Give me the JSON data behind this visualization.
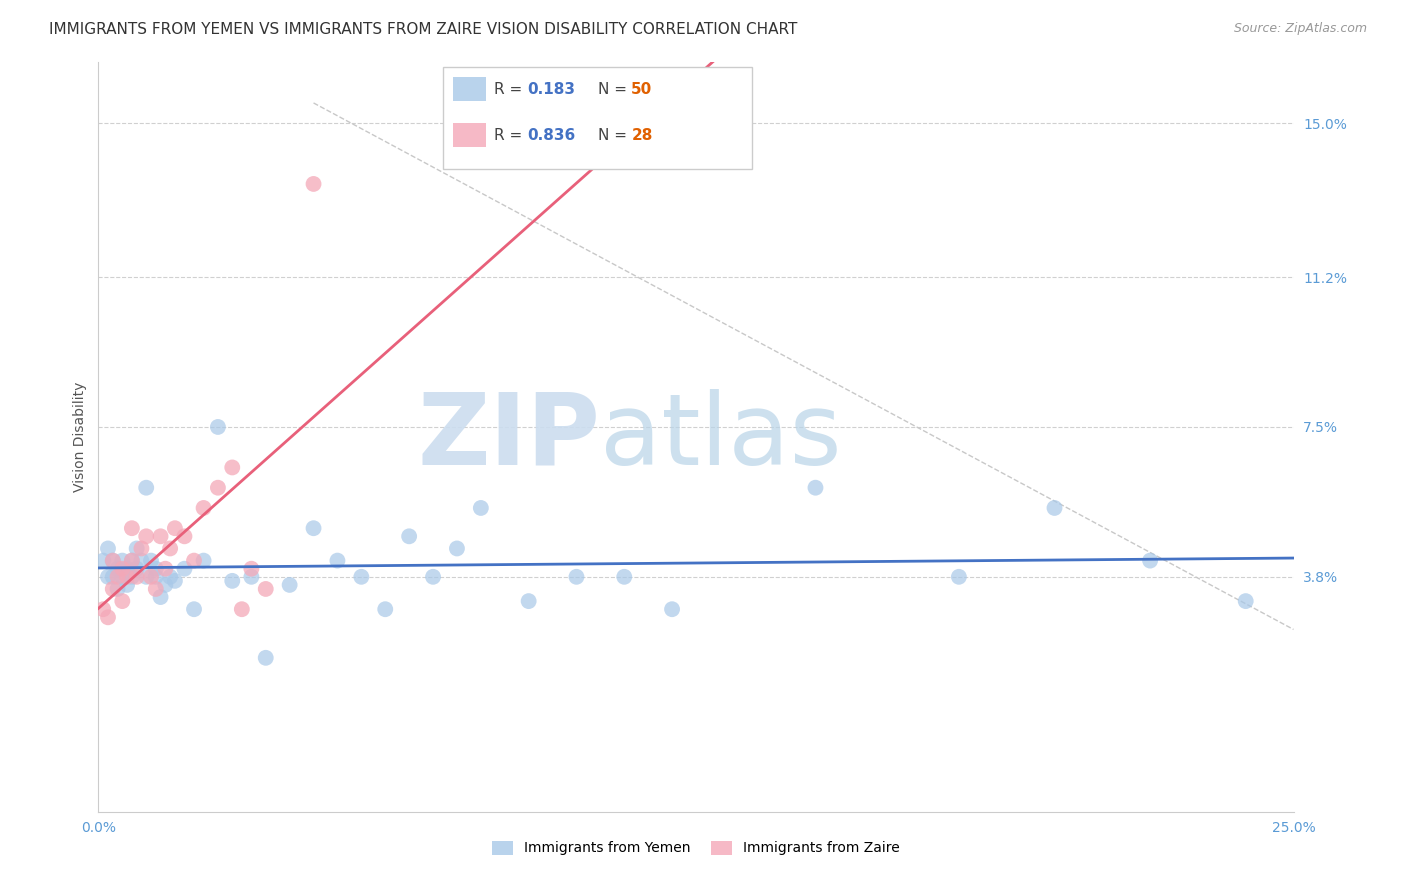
{
  "title": "IMMIGRANTS FROM YEMEN VS IMMIGRANTS FROM ZAIRE VISION DISABILITY CORRELATION CHART",
  "source": "Source: ZipAtlas.com",
  "ylabel": "Vision Disability",
  "xlim": [
    0.0,
    0.25
  ],
  "ylim": [
    -0.02,
    0.165
  ],
  "ytick_positions": [
    0.038,
    0.075,
    0.112,
    0.15
  ],
  "ytick_labels": [
    "3.8%",
    "7.5%",
    "11.2%",
    "15.0%"
  ],
  "tick_color": "#5b9bd5",
  "yemen_color": "#a8c8e8",
  "zaire_color": "#f4a8b8",
  "yemen_line_color": "#4472c4",
  "zaire_line_color": "#e8607a",
  "grid_color": "#d0d0d0",
  "background_color": "#ffffff",
  "yemen_R": "0.183",
  "yemen_N": "50",
  "zaire_R": "0.836",
  "zaire_N": "28",
  "R_color": "#4472c4",
  "N_color": "#e06000",
  "yemen_scatter_x": [
    0.001,
    0.002,
    0.002,
    0.003,
    0.003,
    0.004,
    0.004,
    0.005,
    0.005,
    0.006,
    0.006,
    0.007,
    0.007,
    0.008,
    0.008,
    0.009,
    0.01,
    0.01,
    0.011,
    0.012,
    0.012,
    0.013,
    0.014,
    0.015,
    0.016,
    0.018,
    0.02,
    0.022,
    0.025,
    0.028,
    0.032,
    0.035,
    0.04,
    0.045,
    0.05,
    0.055,
    0.06,
    0.065,
    0.07,
    0.075,
    0.08,
    0.09,
    0.1,
    0.11,
    0.12,
    0.15,
    0.18,
    0.2,
    0.22,
    0.24
  ],
  "yemen_scatter_y": [
    0.042,
    0.045,
    0.038,
    0.042,
    0.038,
    0.04,
    0.035,
    0.042,
    0.038,
    0.04,
    0.036,
    0.042,
    0.038,
    0.045,
    0.04,
    0.042,
    0.038,
    0.06,
    0.042,
    0.038,
    0.04,
    0.033,
    0.036,
    0.038,
    0.037,
    0.04,
    0.03,
    0.042,
    0.075,
    0.037,
    0.038,
    0.018,
    0.036,
    0.05,
    0.042,
    0.038,
    0.03,
    0.048,
    0.038,
    0.045,
    0.055,
    0.032,
    0.038,
    0.038,
    0.03,
    0.06,
    0.038,
    0.055,
    0.042,
    0.032
  ],
  "zaire_scatter_x": [
    0.001,
    0.002,
    0.003,
    0.003,
    0.004,
    0.005,
    0.005,
    0.006,
    0.007,
    0.007,
    0.008,
    0.009,
    0.01,
    0.011,
    0.012,
    0.013,
    0.014,
    0.015,
    0.016,
    0.018,
    0.02,
    0.022,
    0.025,
    0.028,
    0.03,
    0.032,
    0.035,
    0.045
  ],
  "zaire_scatter_y": [
    0.03,
    0.028,
    0.035,
    0.042,
    0.038,
    0.032,
    0.04,
    0.038,
    0.042,
    0.05,
    0.038,
    0.045,
    0.048,
    0.038,
    0.035,
    0.048,
    0.04,
    0.045,
    0.05,
    0.048,
    0.042,
    0.055,
    0.06,
    0.065,
    0.03,
    0.04,
    0.035,
    0.135
  ],
  "diag_line_x": [
    0.045,
    0.25
  ],
  "diag_line_y": [
    0.155,
    0.025
  ],
  "title_fontsize": 11,
  "axis_label_fontsize": 10,
  "tick_fontsize": 10,
  "legend_fontsize": 11,
  "watermark_zip_color": "#ccddef",
  "watermark_atlas_color": "#b8d4e8"
}
